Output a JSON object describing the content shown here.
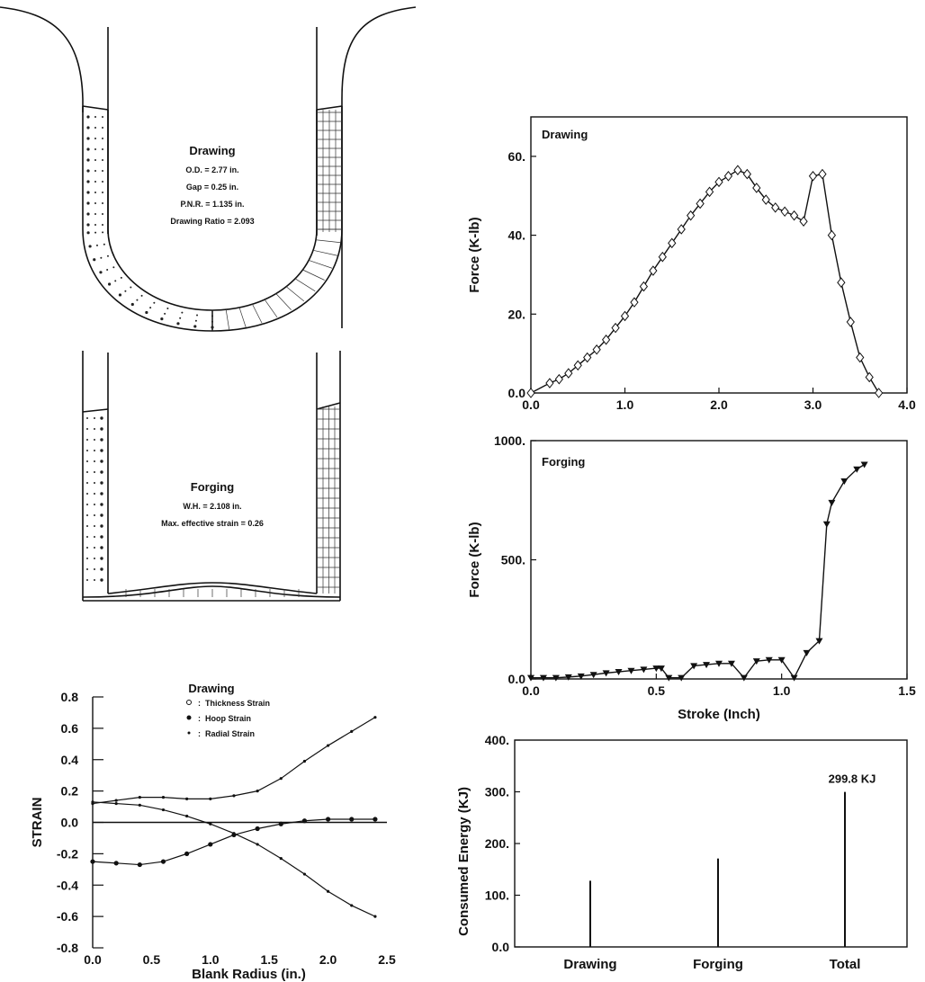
{
  "colors": {
    "ink": "#111111",
    "paper": "#ffffff"
  },
  "left_panels": {
    "drawing": {
      "title": "Drawing",
      "params": [
        "O.D. = 2.77 in.",
        "Gap = 0.25 in.",
        "P.N.R. = 1.135 in.",
        "Drawing Ratio = 2.093"
      ]
    },
    "forging": {
      "title": "Forging",
      "params": [
        "W.H. = 2.108 in.",
        "Max. effective strain = 0.26"
      ]
    }
  },
  "chart_data": [
    {
      "id": "drawing_force",
      "type": "line",
      "title": "Drawing",
      "xlabel": "",
      "ylabel": "Force (K-lb)",
      "xlim": [
        0,
        4.0
      ],
      "ylim": [
        0,
        70
      ],
      "xticks": [
        "0.0",
        "1.0",
        "2.0",
        "3.0",
        "4.0"
      ],
      "yticks": [
        "0.0",
        "20.",
        "40.",
        "60."
      ],
      "ytick_values": [
        0,
        20,
        40,
        60
      ],
      "marker": "diamond",
      "x": [
        0.0,
        0.2,
        0.3,
        0.4,
        0.5,
        0.6,
        0.7,
        0.8,
        0.9,
        1.0,
        1.1,
        1.2,
        1.3,
        1.4,
        1.5,
        1.6,
        1.7,
        1.8,
        1.9,
        2.0,
        2.1,
        2.2,
        2.3,
        2.4,
        2.5,
        2.6,
        2.7,
        2.8,
        2.9,
        3.0,
        3.1,
        3.2,
        3.3,
        3.4,
        3.5,
        3.6,
        3.7
      ],
      "y": [
        0,
        2.5,
        3.5,
        5,
        7,
        9,
        11,
        13.5,
        16.5,
        19.5,
        23,
        27,
        31,
        34.5,
        38,
        41.5,
        45,
        48,
        51,
        53.5,
        55,
        56.5,
        55.5,
        52,
        49,
        47,
        46,
        45,
        43.5,
        55,
        55.5,
        40,
        28,
        18,
        9,
        4,
        0
      ]
    },
    {
      "id": "forging_force",
      "type": "line",
      "title": "Forging",
      "xlabel": "Stroke (Inch)",
      "ylabel": "Force (K-lb)",
      "xlim": [
        0,
        1.5
      ],
      "ylim": [
        0,
        1000
      ],
      "xticks": [
        "0.0",
        "0.5",
        "1.0",
        "1.5"
      ],
      "yticks": [
        "0.0",
        "500.",
        "1000."
      ],
      "ytick_values": [
        0,
        500,
        1000
      ],
      "marker": "triangle-down",
      "x": [
        0.0,
        0.05,
        0.1,
        0.15,
        0.2,
        0.25,
        0.3,
        0.35,
        0.4,
        0.45,
        0.5,
        0.52,
        0.55,
        0.6,
        0.65,
        0.7,
        0.75,
        0.8,
        0.85,
        0.9,
        0.95,
        1.0,
        1.05,
        1.1,
        1.15,
        1.18,
        1.2,
        1.25,
        1.3,
        1.33
      ],
      "y": [
        5,
        5,
        5,
        8,
        12,
        18,
        25,
        30,
        35,
        40,
        45,
        45,
        5,
        5,
        55,
        60,
        65,
        65,
        5,
        75,
        80,
        80,
        5,
        110,
        160,
        650,
        740,
        830,
        880,
        900
      ]
    },
    {
      "id": "strain",
      "type": "line",
      "title": "Drawing",
      "xlabel": "Blank Radius (in.)",
      "ylabel": "STRAIN",
      "xlim": [
        0,
        2.5
      ],
      "ylim": [
        -0.8,
        0.8
      ],
      "xticks": [
        "0.0",
        "0.5",
        "1.0",
        "1.5",
        "2.0",
        "2.5"
      ],
      "yticks": [
        "-0.8",
        "-0.6",
        "-0.4",
        "-0.2",
        "0.0",
        "0.2",
        "0.4",
        "0.6",
        "0.8"
      ],
      "legend": [
        "Thickness Strain",
        "Hoop Strain",
        "Radial Strain"
      ],
      "series": [
        {
          "name": "Thickness Strain",
          "marker": "small-dot",
          "x": [
            0.0,
            0.2,
            0.4,
            0.6,
            0.8,
            1.0,
            1.2,
            1.4,
            1.6,
            1.8,
            2.0,
            2.2,
            2.4
          ],
          "values": [
            0.12,
            0.14,
            0.16,
            0.16,
            0.15,
            0.15,
            0.17,
            0.2,
            0.28,
            0.39,
            0.49,
            0.58,
            0.67
          ]
        },
        {
          "name": "Hoop Strain",
          "marker": "filled-dot",
          "x": [
            0.0,
            0.2,
            0.4,
            0.6,
            0.8,
            1.0,
            1.2,
            1.4,
            1.6,
            1.8,
            2.0,
            2.2,
            2.4
          ],
          "values": [
            -0.25,
            -0.26,
            -0.27,
            -0.25,
            -0.2,
            -0.14,
            -0.08,
            -0.04,
            -0.01,
            0.01,
            0.02,
            0.02,
            0.02
          ]
        },
        {
          "name": "Radial Strain",
          "marker": "dot",
          "x": [
            0.0,
            0.2,
            0.4,
            0.6,
            0.8,
            1.0,
            1.2,
            1.4,
            1.6,
            1.8,
            2.0,
            2.2,
            2.4
          ],
          "values": [
            0.13,
            0.12,
            0.11,
            0.08,
            0.04,
            -0.01,
            -0.07,
            -0.14,
            -0.23,
            -0.33,
            -0.44,
            -0.53,
            -0.6
          ]
        }
      ]
    },
    {
      "id": "energy",
      "type": "bar",
      "title": "",
      "xlabel": "",
      "ylabel": "Consumed Energy (KJ)",
      "ylim": [
        0,
        400
      ],
      "yticks": [
        "0.0",
        "100.",
        "200.",
        "300.",
        "400."
      ],
      "categories": [
        "Drawing",
        "Forging",
        "Total"
      ],
      "values": [
        128,
        171,
        299.8
      ],
      "annotation": "299.8 KJ"
    }
  ]
}
